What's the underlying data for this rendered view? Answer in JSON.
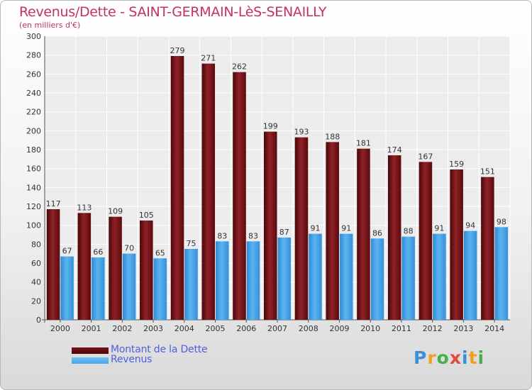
{
  "title": "Revenus/Dette - SAINT-GERMAIN-LèS-SENAILLY",
  "subtitle": "(en milliers d'€)",
  "legend": [
    {
      "label": "Montant de la Dette",
      "color": "#7a1418"
    },
    {
      "label": "Revenus",
      "color": "#4aa3e6"
    }
  ],
  "logo": {
    "letters": [
      {
        "ch": "P",
        "color": "#3a8fd8"
      },
      {
        "ch": "r",
        "color": "#f0a020"
      },
      {
        "ch": "o",
        "color": "#46b04a"
      },
      {
        "ch": "x",
        "color": "#e24a3a"
      },
      {
        "ch": "i",
        "color": "#3a8fd8"
      },
      {
        "ch": "t",
        "color": "#f0a020"
      },
      {
        "ch": "i",
        "color": "#46b04a"
      }
    ]
  },
  "chart_data": {
    "type": "bar",
    "categories": [
      "2000",
      "2001",
      "2002",
      "2003",
      "2004",
      "2005",
      "2006",
      "2007",
      "2008",
      "2009",
      "2010",
      "2011",
      "2012",
      "2013",
      "2014"
    ],
    "series": [
      {
        "name": "Montant de la Dette",
        "color": "#7a1418",
        "values": [
          117,
          113,
          109,
          105,
          279,
          271,
          262,
          199,
          193,
          188,
          181,
          174,
          167,
          159,
          151
        ]
      },
      {
        "name": "Revenus",
        "color": "#4aa3e6",
        "values": [
          67,
          66,
          70,
          65,
          75,
          83,
          83,
          87,
          91,
          91,
          86,
          88,
          91,
          94,
          98
        ]
      }
    ],
    "ylim": [
      0,
      300
    ],
    "yticks": [
      0,
      20,
      40,
      60,
      80,
      100,
      120,
      140,
      160,
      180,
      200,
      220,
      240,
      260,
      280,
      300
    ],
    "grid": true
  }
}
